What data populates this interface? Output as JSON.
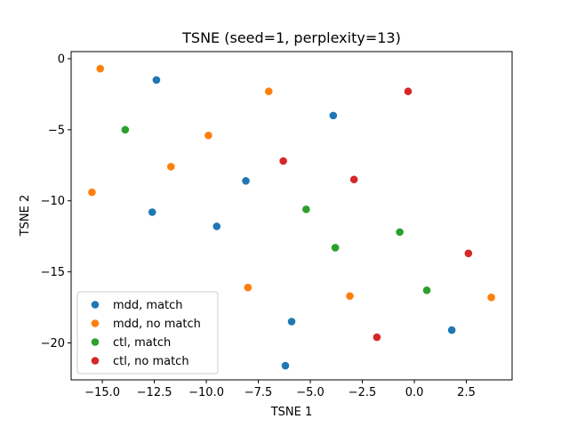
{
  "chart_data": {
    "type": "scatter",
    "title": "TSNE (seed=1, perplexity=13)",
    "xlabel": "TSNE 1",
    "ylabel": "TSNE 2",
    "xlim": [
      -16.5,
      4.7
    ],
    "ylim": [
      -22.6,
      0.5
    ],
    "xticks": [
      -15.0,
      -12.5,
      -10.0,
      -7.5,
      -5.0,
      -2.5,
      0.0,
      2.5
    ],
    "xtick_labels": [
      "−15.0",
      "−12.5",
      "−10.0",
      "−7.5",
      "−5.0",
      "−2.5",
      "0.0",
      "2.5"
    ],
    "yticks": [
      0,
      -5,
      -10,
      -15,
      -20
    ],
    "ytick_labels": [
      "0",
      "−5",
      "−10",
      "−15",
      "−20"
    ],
    "grid": false,
    "legend_position": "lower-left",
    "series": [
      {
        "name": "mdd, match",
        "color": "#1f77b4",
        "points": [
          [
            -12.4,
            -1.5
          ],
          [
            -3.9,
            -4.0
          ],
          [
            -8.1,
            -8.6
          ],
          [
            -12.6,
            -10.8
          ],
          [
            -9.5,
            -11.8
          ],
          [
            -5.9,
            -18.5
          ],
          [
            -6.2,
            -21.6
          ],
          [
            1.8,
            -19.1
          ]
        ]
      },
      {
        "name": "mdd, no match",
        "color": "#ff7f0e",
        "points": [
          [
            -15.1,
            -0.7
          ],
          [
            -7.0,
            -2.3
          ],
          [
            -9.9,
            -5.4
          ],
          [
            -11.7,
            -7.6
          ],
          [
            -15.5,
            -9.4
          ],
          [
            -8.0,
            -16.1
          ],
          [
            -3.1,
            -16.7
          ],
          [
            3.7,
            -16.8
          ]
        ]
      },
      {
        "name": "ctl, match",
        "color": "#2ca02c",
        "points": [
          [
            -13.9,
            -5.0
          ],
          [
            -5.2,
            -10.6
          ],
          [
            -3.8,
            -13.3
          ],
          [
            -0.7,
            -12.2
          ],
          [
            0.6,
            -16.3
          ]
        ]
      },
      {
        "name": "ctl, no match",
        "color": "#d62728",
        "points": [
          [
            -6.3,
            -7.2
          ],
          [
            -2.9,
            -8.5
          ],
          [
            -0.3,
            -2.3
          ],
          [
            2.6,
            -13.7
          ],
          [
            -1.8,
            -19.6
          ]
        ]
      }
    ]
  }
}
